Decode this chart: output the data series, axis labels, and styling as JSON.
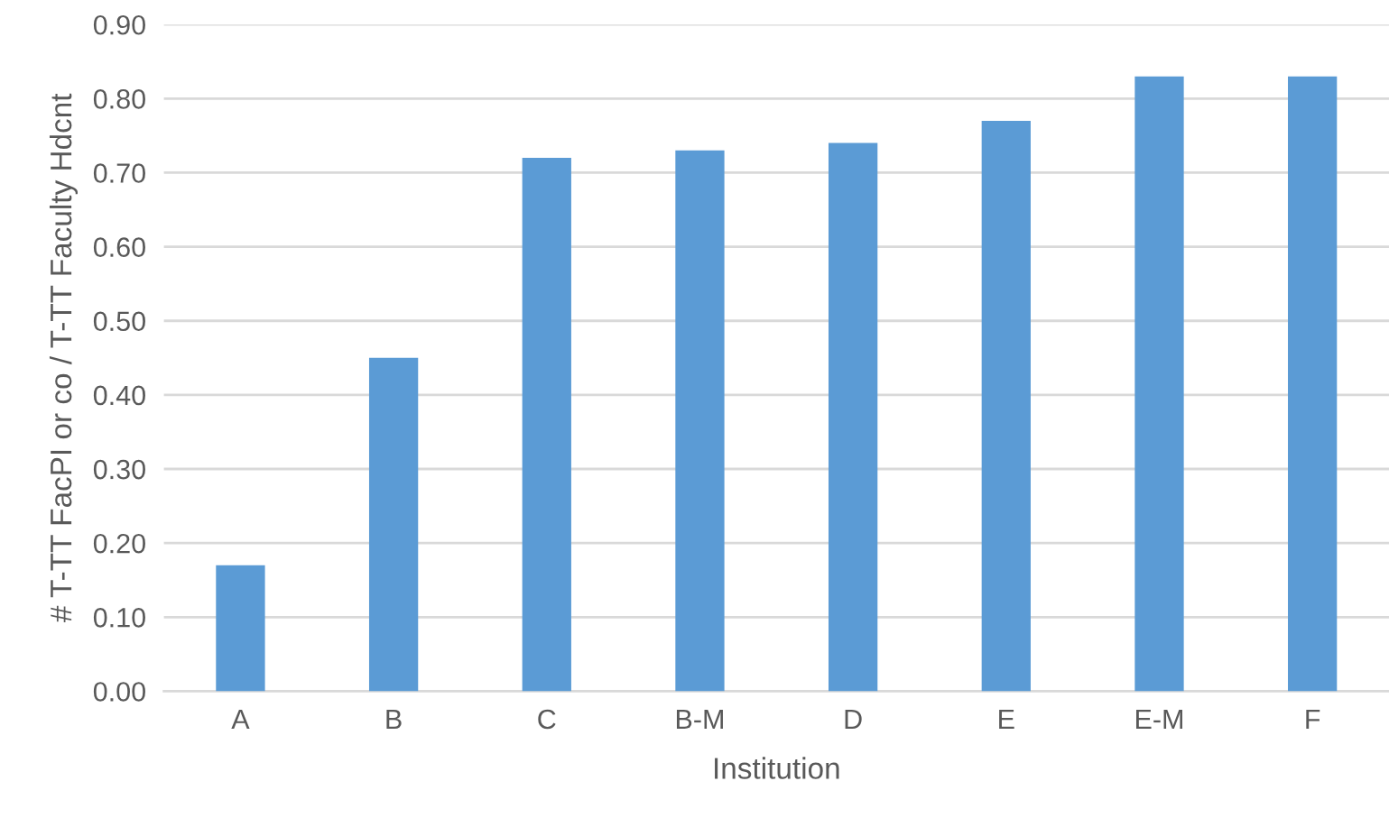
{
  "chart_data": {
    "type": "bar",
    "xlabel": "Institution",
    "ylabel": "# T-TT FacPI or co / T-TT Faculty Hdcnt",
    "categories": [
      "A",
      "B",
      "C",
      "B-M",
      "D",
      "E",
      "E-M",
      "F"
    ],
    "values": [
      0.17,
      0.45,
      0.72,
      0.73,
      0.74,
      0.77,
      0.83,
      0.83
    ],
    "color": "#5b9bd5",
    "ylim": [
      0,
      0.9
    ],
    "yticks": [
      {
        "value": 0,
        "label": "0.00"
      },
      {
        "value": 0.1,
        "label": "0.10"
      },
      {
        "value": 0.2,
        "label": "0.20"
      },
      {
        "value": 0.3,
        "label": "0.30"
      },
      {
        "value": 0.4,
        "label": "0.40"
      },
      {
        "value": 0.5,
        "label": "0.50"
      },
      {
        "value": 0.6,
        "label": "0.60"
      },
      {
        "value": 0.7,
        "label": "0.70"
      },
      {
        "value": 0.8,
        "label": "0.80"
      },
      {
        "value": 0.9,
        "label": "0.90"
      }
    ],
    "grid": "y",
    "legend": false
  }
}
